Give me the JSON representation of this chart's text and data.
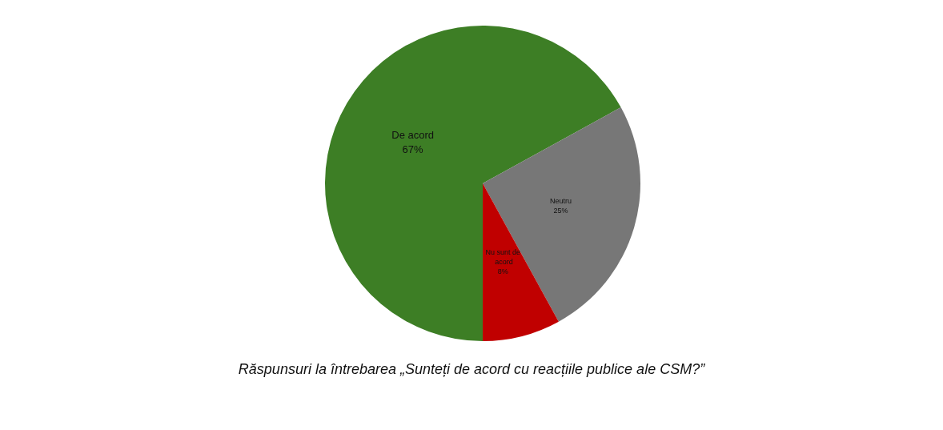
{
  "chart_data": {
    "type": "pie",
    "categories": [
      "De acord",
      "Neutru",
      "Nu sunt de acord"
    ],
    "values": [
      67,
      25,
      8
    ],
    "colors": [
      "#3d7e25",
      "#777777",
      "#c00000"
    ],
    "value_labels": [
      "67%",
      "25%",
      "8%"
    ],
    "legend": false,
    "annotations": [
      "Răspunsuri la întrebarea „Sunteți de acord cu reacțiile publice ale CSM?”"
    ]
  }
}
